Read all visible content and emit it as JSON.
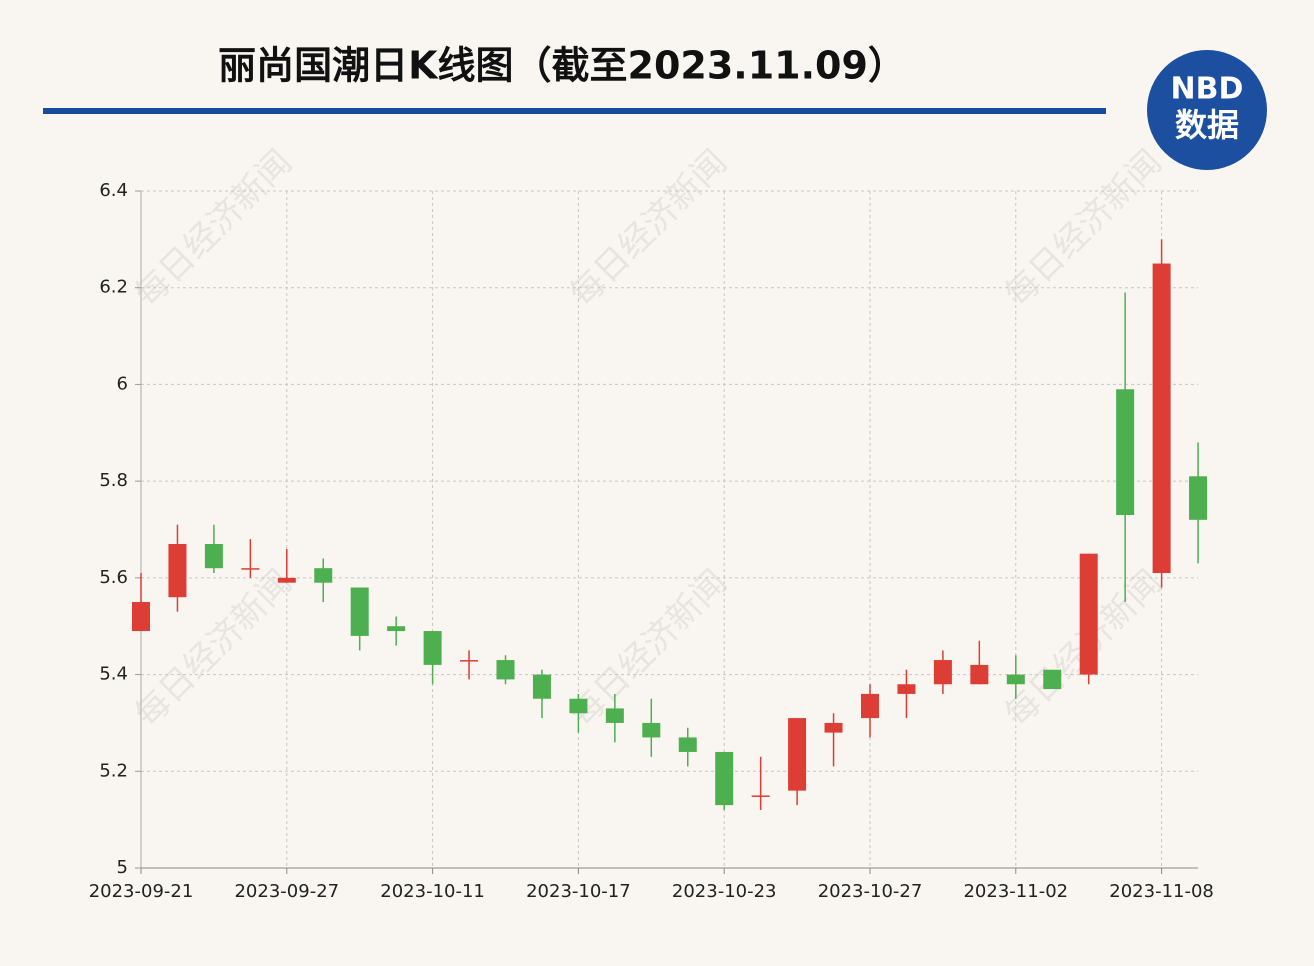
{
  "chart_data": {
    "type": "candlestick",
    "title": "丽尚国潮日K线图（截至2023.11.09）",
    "logo": {
      "top": "NBD",
      "bottom": "数据"
    },
    "watermark": "每日经济新闻",
    "categories": [
      "2023-09-21",
      null,
      null,
      null,
      "2023-09-27",
      null,
      null,
      null,
      "2023-10-11",
      null,
      null,
      null,
      "2023-10-17",
      null,
      null,
      null,
      "2023-10-23",
      null,
      null,
      null,
      "2023-10-27",
      null,
      null,
      null,
      "2023-11-02",
      null,
      null,
      null,
      "2023-11-08",
      null
    ],
    "open": [
      5.49,
      5.56,
      5.67,
      5.62,
      5.59,
      5.62,
      5.58,
      5.5,
      5.49,
      5.43,
      5.43,
      5.4,
      5.35,
      5.33,
      5.3,
      5.27,
      5.24,
      5.15,
      5.16,
      5.28,
      5.31,
      5.36,
      5.38,
      5.38,
      5.4,
      5.41,
      5.4,
      5.99,
      5.61,
      5.81
    ],
    "high": [
      5.61,
      5.71,
      5.71,
      5.68,
      5.66,
      5.64,
      5.58,
      5.52,
      5.49,
      5.45,
      5.44,
      5.41,
      5.36,
      5.36,
      5.35,
      5.29,
      5.24,
      5.23,
      5.31,
      5.32,
      5.38,
      5.41,
      5.45,
      5.47,
      5.44,
      5.41,
      5.65,
      6.19,
      6.3,
      5.88
    ],
    "low": [
      5.49,
      5.53,
      5.61,
      5.6,
      5.59,
      5.55,
      5.45,
      5.46,
      5.38,
      5.39,
      5.38,
      5.31,
      5.28,
      5.26,
      5.23,
      5.21,
      5.12,
      5.12,
      5.13,
      5.21,
      5.27,
      5.31,
      5.36,
      5.38,
      5.35,
      5.37,
      5.38,
      5.55,
      5.58,
      5.63
    ],
    "close": [
      5.55,
      5.67,
      5.62,
      5.62,
      5.6,
      5.59,
      5.48,
      5.49,
      5.42,
      5.43,
      5.39,
      5.35,
      5.32,
      5.3,
      5.27,
      5.24,
      5.13,
      5.15,
      5.31,
      5.3,
      5.36,
      5.38,
      5.43,
      5.42,
      5.38,
      5.37,
      5.65,
      5.73,
      6.25,
      5.72
    ],
    "up_color": "#dc3d35",
    "down_color": "#4daf4f",
    "ylim": [
      5,
      6.4
    ],
    "yticks": [
      5,
      5.2,
      5.4,
      5.6,
      5.8,
      6,
      6.2,
      6.4
    ],
    "grid": true
  }
}
